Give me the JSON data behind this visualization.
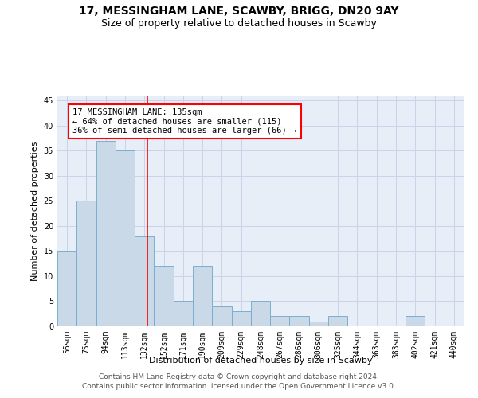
{
  "title": "17, MESSINGHAM LANE, SCAWBY, BRIGG, DN20 9AY",
  "subtitle": "Size of property relative to detached houses in Scawby",
  "xlabel": "Distribution of detached houses by size in Scawby",
  "ylabel": "Number of detached properties",
  "categories": [
    "56sqm",
    "75sqm",
    "94sqm",
    "113sqm",
    "132sqm",
    "152sqm",
    "171sqm",
    "190sqm",
    "209sqm",
    "229sqm",
    "248sqm",
    "267sqm",
    "286sqm",
    "306sqm",
    "325sqm",
    "344sqm",
    "363sqm",
    "383sqm",
    "402sqm",
    "421sqm",
    "440sqm"
  ],
  "values": [
    15,
    25,
    37,
    35,
    18,
    12,
    5,
    12,
    4,
    3,
    5,
    2,
    2,
    1,
    2,
    0,
    0,
    0,
    2,
    0,
    0
  ],
  "bar_color": "#c9d9e8",
  "bar_edgecolor": "#7aaed0",
  "bar_linewidth": 0.7,
  "annotation_box_text": "17 MESSINGHAM LANE: 135sqm\n← 64% of detached houses are smaller (115)\n36% of semi-detached houses are larger (66) →",
  "ylim": [
    0,
    46
  ],
  "yticks": [
    0,
    5,
    10,
    15,
    20,
    25,
    30,
    35,
    40,
    45
  ],
  "grid_color": "#c8d4e8",
  "background_color": "#e8eef7",
  "footer_line1": "Contains HM Land Registry data © Crown copyright and database right 2024.",
  "footer_line2": "Contains public sector information licensed under the Open Government Licence v3.0.",
  "title_fontsize": 10,
  "subtitle_fontsize": 9,
  "axis_label_fontsize": 8,
  "tick_fontsize": 7,
  "annotation_fontsize": 7.5,
  "footer_fontsize": 6.5
}
